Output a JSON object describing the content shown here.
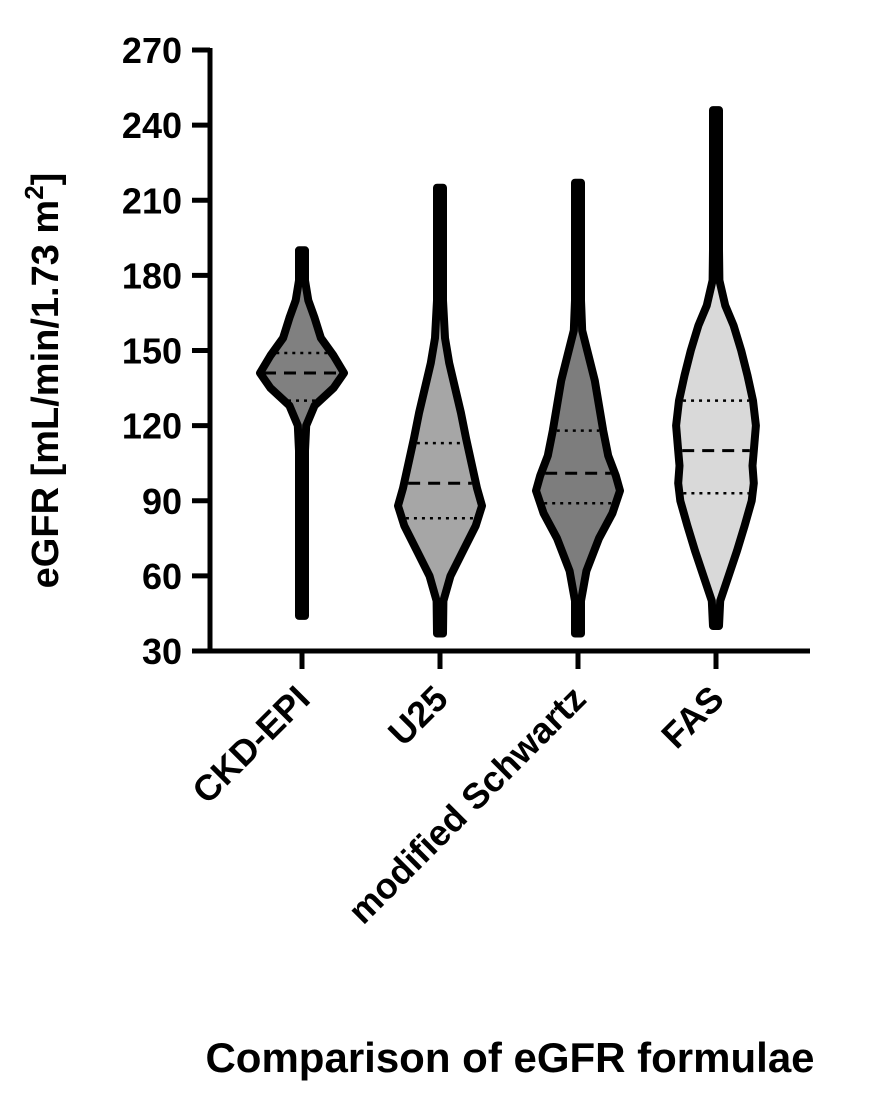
{
  "chart_data": {
    "type": "violin",
    "xlabel": "Comparison of eGFR formulae",
    "ylabel": "eGFR [mL/min/1.73 m",
    "ylabel_superscript": "2",
    "ylabel_suffix": "]",
    "ylim": [
      30,
      270
    ],
    "yticks": [
      30,
      60,
      90,
      120,
      150,
      180,
      210,
      240,
      270
    ],
    "categories": [
      "CKD-EPI",
      "U25",
      "modified Schwartz",
      "FAS"
    ],
    "series": [
      {
        "category": "CKD-EPI",
        "fill": "#808080",
        "min": 44,
        "max": 190,
        "q1": 130,
        "median": 141,
        "q3": 149,
        "density": [
          [
            44,
            0.01
          ],
          [
            60,
            0.02
          ],
          [
            80,
            0.04
          ],
          [
            95,
            0.07
          ],
          [
            110,
            0.06
          ],
          [
            120,
            0.1
          ],
          [
            128,
            0.3
          ],
          [
            135,
            0.75
          ],
          [
            141,
            1.0
          ],
          [
            148,
            0.75
          ],
          [
            155,
            0.45
          ],
          [
            163,
            0.3
          ],
          [
            170,
            0.15
          ],
          [
            178,
            0.05
          ],
          [
            190,
            0.02
          ]
        ]
      },
      {
        "category": "U25",
        "fill": "#a6a6a6",
        "min": 37,
        "max": 215,
        "q1": 83,
        "median": 97,
        "q3": 113,
        "density": [
          [
            37,
            0.02
          ],
          [
            50,
            0.08
          ],
          [
            60,
            0.25
          ],
          [
            70,
            0.55
          ],
          [
            80,
            0.85
          ],
          [
            88,
            1.0
          ],
          [
            95,
            0.88
          ],
          [
            105,
            0.75
          ],
          [
            115,
            0.62
          ],
          [
            125,
            0.5
          ],
          [
            135,
            0.36
          ],
          [
            145,
            0.22
          ],
          [
            155,
            0.12
          ],
          [
            170,
            0.06
          ],
          [
            185,
            0.04
          ],
          [
            200,
            0.03
          ],
          [
            215,
            0.02
          ]
        ]
      },
      {
        "category": "modified Schwartz",
        "fill": "#7d7d7d",
        "min": 37,
        "max": 217,
        "q1": 89,
        "median": 101,
        "q3": 118,
        "density": [
          [
            37,
            0.02
          ],
          [
            50,
            0.07
          ],
          [
            62,
            0.2
          ],
          [
            75,
            0.5
          ],
          [
            85,
            0.82
          ],
          [
            94,
            1.0
          ],
          [
            100,
            0.9
          ],
          [
            108,
            0.72
          ],
          [
            118,
            0.6
          ],
          [
            128,
            0.5
          ],
          [
            138,
            0.4
          ],
          [
            148,
            0.25
          ],
          [
            158,
            0.1
          ],
          [
            170,
            0.06
          ],
          [
            185,
            0.04
          ],
          [
            200,
            0.03
          ],
          [
            217,
            0.02
          ]
        ]
      },
      {
        "category": "FAS",
        "fill": "#d9d9d9",
        "min": 40,
        "max": 246,
        "q1": 93,
        "median": 110,
        "q3": 130,
        "density": [
          [
            40,
            0.02
          ],
          [
            50,
            0.1
          ],
          [
            60,
            0.3
          ],
          [
            70,
            0.5
          ],
          [
            80,
            0.68
          ],
          [
            90,
            0.85
          ],
          [
            97,
            0.9
          ],
          [
            104,
            0.87
          ],
          [
            110,
            0.9
          ],
          [
            120,
            0.95
          ],
          [
            130,
            0.88
          ],
          [
            140,
            0.75
          ],
          [
            150,
            0.6
          ],
          [
            160,
            0.42
          ],
          [
            168,
            0.22
          ],
          [
            178,
            0.08
          ],
          [
            190,
            0.05
          ],
          [
            205,
            0.04
          ],
          [
            225,
            0.03
          ],
          [
            246,
            0.02
          ]
        ]
      }
    ]
  }
}
